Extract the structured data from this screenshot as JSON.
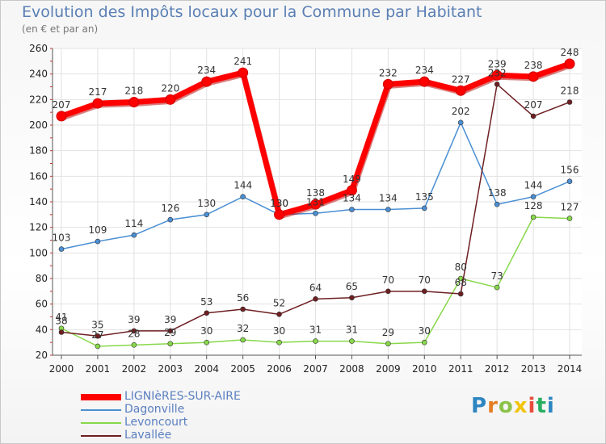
{
  "header": {
    "title": "Evolution des Impôts locaux pour la Commune par Habitant",
    "subtitle": "(en € et par an)"
  },
  "chart_data": {
    "type": "line",
    "title": "Evolution des Impôts locaux pour la Commune par Habitant",
    "subtitle": "(en € et par an)",
    "xlabel": "",
    "ylabel": "",
    "x": [
      "2000",
      "2001",
      "2002",
      "2003",
      "2004",
      "2005",
      "2006",
      "2007",
      "2008",
      "2009",
      "2010",
      "2011",
      "2012",
      "2013",
      "2014"
    ],
    "ylim": [
      20,
      260
    ],
    "yticks": [
      20,
      40,
      60,
      80,
      100,
      120,
      140,
      160,
      180,
      200,
      220,
      240,
      260
    ],
    "grid": true,
    "series": [
      {
        "name": "LIGNIèRES-SUR-AIRE",
        "color": "#ff0000",
        "values": [
          207,
          217,
          218,
          220,
          234,
          241,
          130,
          138,
          149,
          232,
          234,
          227,
          239,
          238,
          248
        ]
      },
      {
        "name": "Dagonville",
        "color": "#4a8fd4",
        "values": [
          103,
          109,
          114,
          126,
          130,
          144,
          130,
          131,
          134,
          134,
          135,
          202,
          138,
          144,
          156
        ]
      },
      {
        "name": "Levoncourt",
        "color": "#88d84a",
        "values": [
          41,
          27,
          28,
          29,
          30,
          32,
          30,
          31,
          31,
          29,
          30,
          80,
          73,
          128,
          127
        ]
      },
      {
        "name": "Lavallée",
        "color": "#6e1f22",
        "values": [
          38,
          35,
          39,
          39,
          53,
          56,
          52,
          64,
          65,
          70,
          70,
          68,
          232,
          207,
          218
        ]
      }
    ]
  },
  "legend": {
    "items": [
      {
        "label": "LIGNIèRES-SUR-AIRE"
      },
      {
        "label": "Dagonville"
      },
      {
        "label": "Levoncourt"
      },
      {
        "label": "Lavallée"
      }
    ]
  },
  "logo": {
    "text": "Proxiti",
    "colors": [
      "#2e86c1",
      "#e67e22",
      "#8bc34a",
      "#f1c40f",
      "#e74c3c",
      "#27ae60",
      "#2e86c1"
    ]
  }
}
